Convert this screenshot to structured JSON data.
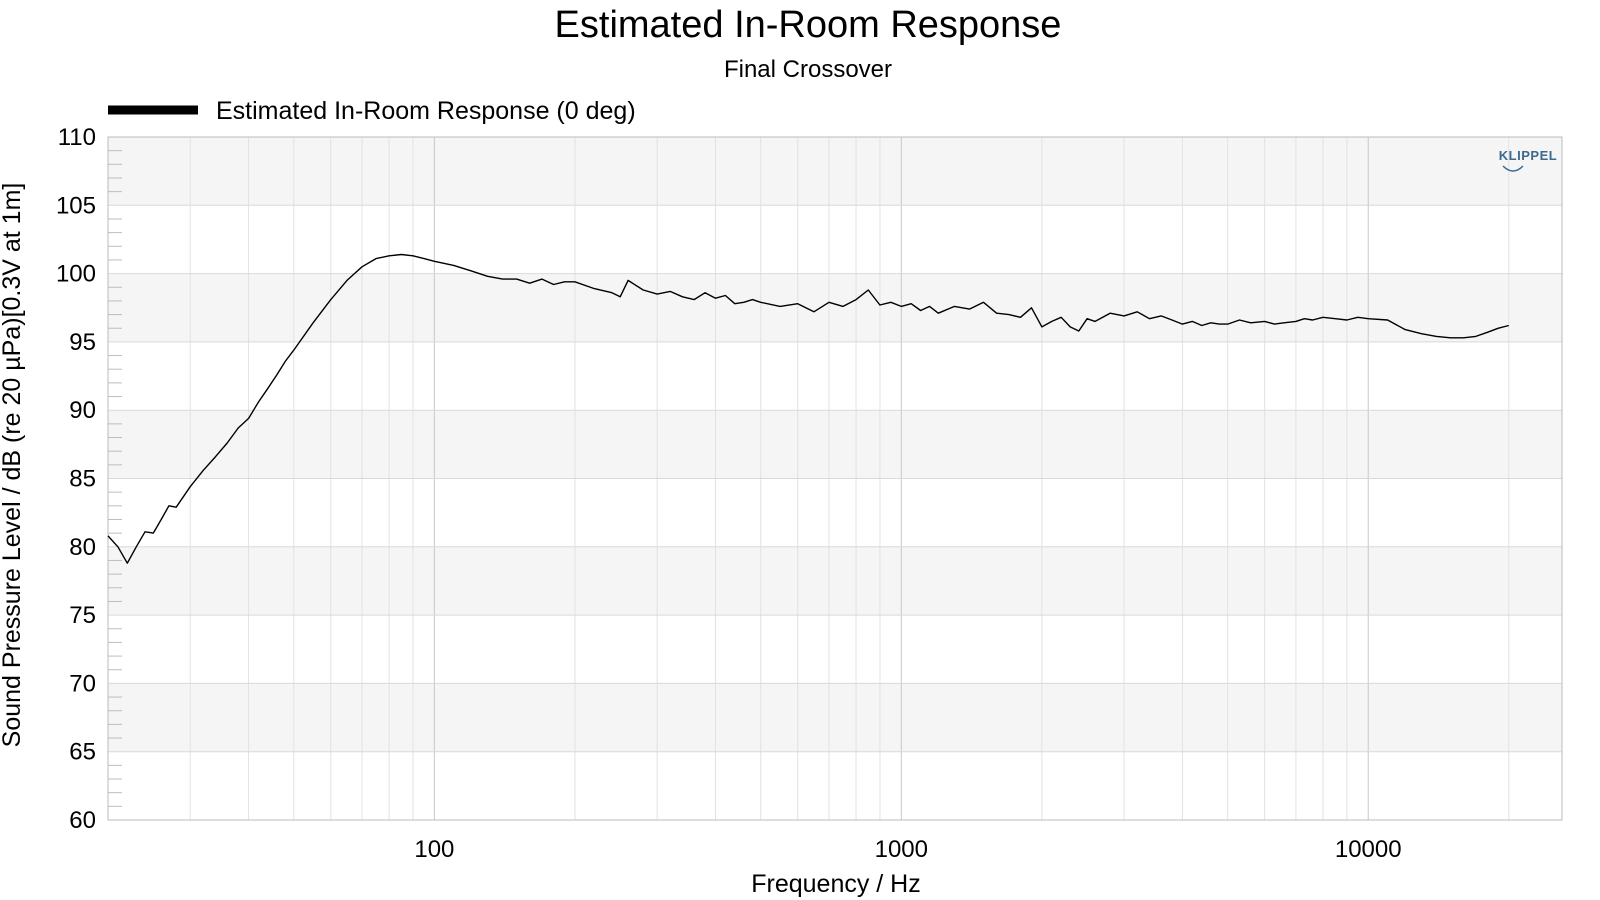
{
  "chart_data": {
    "type": "line",
    "title": "Estimated In-Room Response",
    "subtitle": "Final Crossover",
    "xlabel": "Frequency / Hz",
    "ylabel": "Sound Pressure Level / dB (re 20 µPa)[0.3V at 1m]",
    "x_scale": "log",
    "xlim": [
      20,
      26000
    ],
    "ylim": [
      60,
      110
    ],
    "x_ticks": [
      100,
      1000,
      10000
    ],
    "x_tick_labels": [
      "100",
      "1000",
      "10000"
    ],
    "y_ticks": [
      60,
      65,
      70,
      75,
      80,
      85,
      90,
      95,
      100,
      105,
      110
    ],
    "y_tick_labels": [
      "60",
      "65",
      "70",
      "75",
      "80",
      "85",
      "90",
      "95",
      "100",
      "105",
      "110"
    ],
    "grid": true,
    "legend_position": "top-left",
    "logo": "KLIPPEL",
    "colors": {
      "line": "#000000",
      "band": "#f5f5f5",
      "grid": "#d9d9d9",
      "logo": "#3a6a8e"
    },
    "series": [
      {
        "name": "Estimated In-Room Response (0 deg)",
        "x": [
          20,
          21,
          22,
          23,
          24,
          25,
          26,
          27,
          28,
          30,
          32,
          34,
          36,
          38,
          40,
          42,
          44,
          46,
          48,
          50,
          55,
          60,
          65,
          70,
          75,
          80,
          85,
          90,
          95,
          100,
          110,
          120,
          130,
          140,
          150,
          160,
          170,
          180,
          190,
          200,
          220,
          240,
          250,
          260,
          280,
          300,
          320,
          340,
          360,
          380,
          400,
          420,
          440,
          460,
          480,
          500,
          550,
          600,
          650,
          700,
          750,
          800,
          850,
          900,
          950,
          1000,
          1050,
          1100,
          1150,
          1200,
          1300,
          1400,
          1500,
          1600,
          1700,
          1800,
          1900,
          2000,
          2100,
          2200,
          2300,
          2400,
          2500,
          2600,
          2800,
          3000,
          3200,
          3400,
          3600,
          3800,
          4000,
          4200,
          4400,
          4600,
          4800,
          5000,
          5300,
          5600,
          6000,
          6300,
          6600,
          7000,
          7300,
          7600,
          8000,
          8500,
          9000,
          9500,
          10000,
          11000,
          12000,
          13000,
          14000,
          15000,
          16000,
          17000,
          18000,
          19000,
          20000
        ],
        "y": [
          80.8,
          80.0,
          78.8,
          80.0,
          81.1,
          81.0,
          82.0,
          83.0,
          82.9,
          84.4,
          85.6,
          86.6,
          87.6,
          88.7,
          89.4,
          90.6,
          91.6,
          92.6,
          93.6,
          94.4,
          96.4,
          98.1,
          99.5,
          100.5,
          101.1,
          101.3,
          101.4,
          101.3,
          101.1,
          100.9,
          100.6,
          100.2,
          99.8,
          99.6,
          99.6,
          99.3,
          99.6,
          99.2,
          99.4,
          99.4,
          98.9,
          98.6,
          98.3,
          99.5,
          98.8,
          98.5,
          98.7,
          98.3,
          98.1,
          98.6,
          98.2,
          98.4,
          97.8,
          97.9,
          98.1,
          97.9,
          97.6,
          97.8,
          97.2,
          97.9,
          97.6,
          98.1,
          98.8,
          97.7,
          97.9,
          97.6,
          97.8,
          97.3,
          97.6,
          97.1,
          97.6,
          97.4,
          97.9,
          97.1,
          97.0,
          96.8,
          97.5,
          96.1,
          96.5,
          96.8,
          96.1,
          95.8,
          96.7,
          96.5,
          97.1,
          96.9,
          97.2,
          96.7,
          96.9,
          96.6,
          96.3,
          96.5,
          96.2,
          96.4,
          96.3,
          96.3,
          96.6,
          96.4,
          96.5,
          96.3,
          96.4,
          96.5,
          96.7,
          96.6,
          96.8,
          96.7,
          96.6,
          96.8,
          96.7,
          96.6,
          95.9,
          95.6,
          95.4,
          95.3,
          95.3,
          95.4,
          95.7,
          96.0,
          96.2
        ]
      }
    ]
  }
}
